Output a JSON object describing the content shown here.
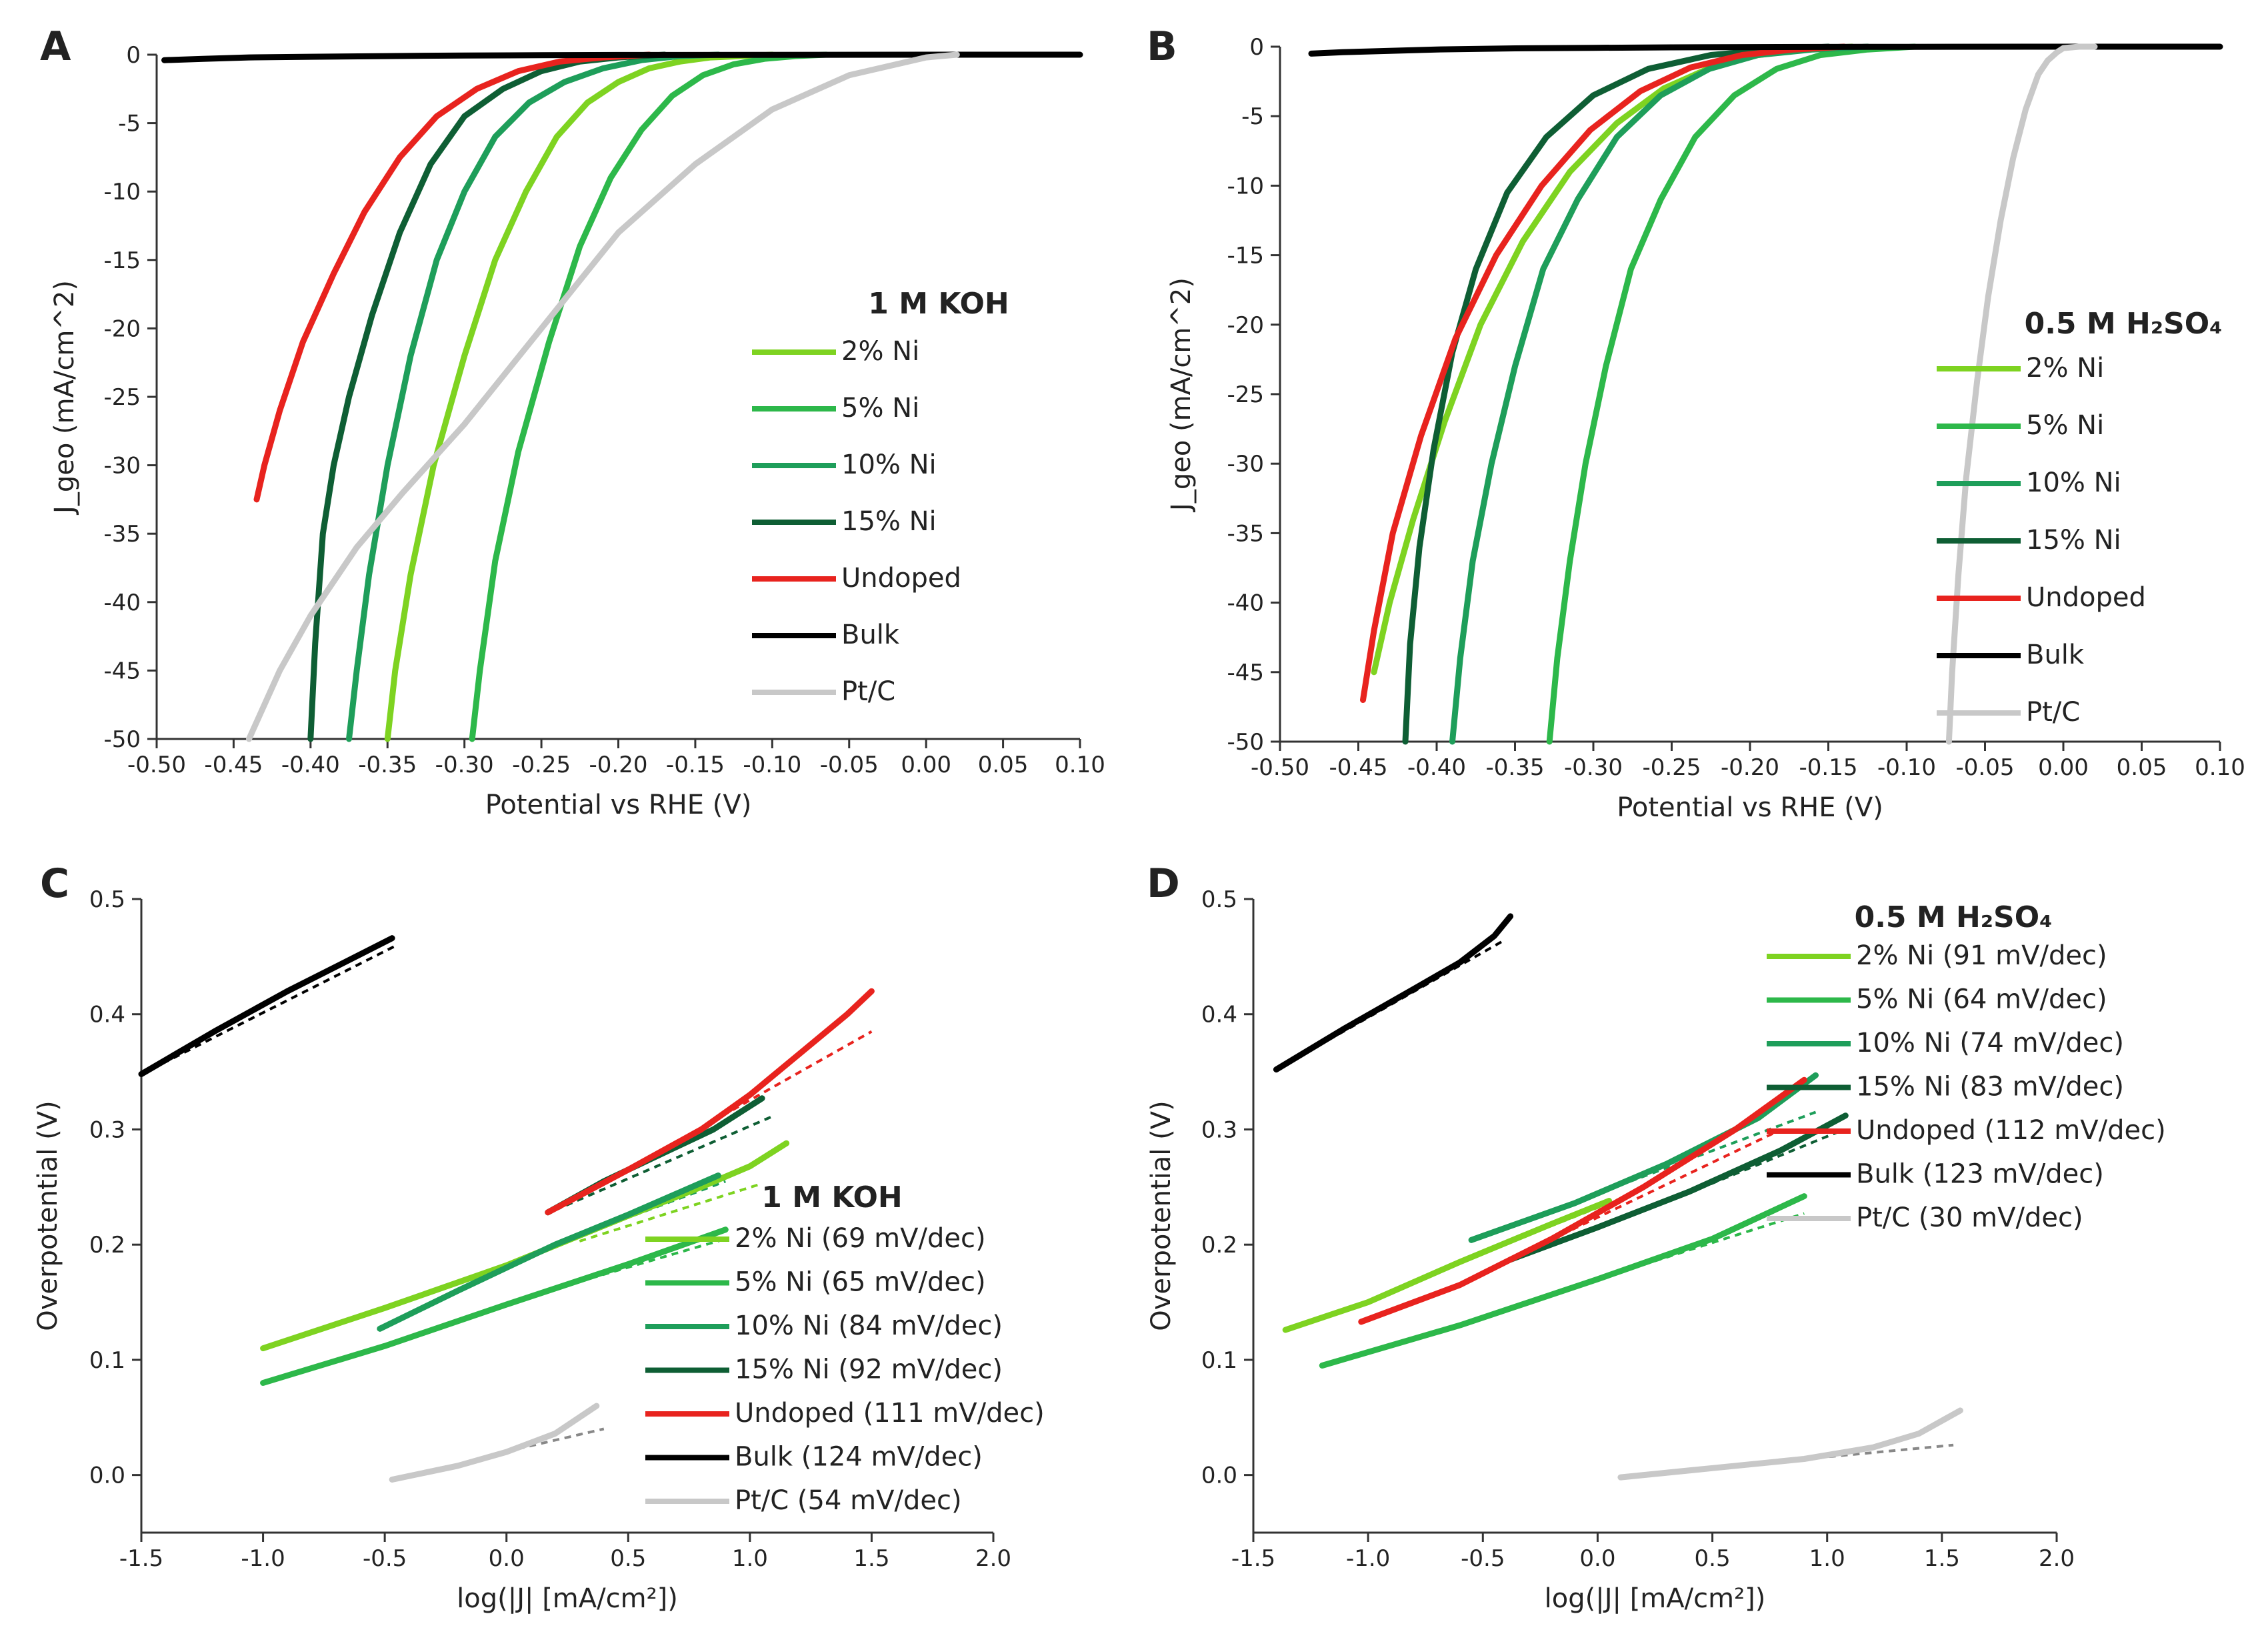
{
  "chart_data": [
    {
      "panel": "A",
      "type": "line",
      "xlabel": "Potential vs RHE (V)",
      "ylabel": "J_geo (mA/cm^2)",
      "xlim": [
        -0.5,
        0.1
      ],
      "ylim": [
        -50,
        0
      ],
      "xticks": [
        "-0.50",
        "-0.45",
        "-0.40",
        "-0.35",
        "-0.30",
        "-0.25",
        "-0.20",
        "-0.15",
        "-0.10",
        "-0.05",
        "0.00",
        "0.05",
        "0.10"
      ],
      "yticks": [
        "0",
        "-5",
        "-10",
        "-15",
        "-20",
        "-25",
        "-30",
        "-35",
        "-40",
        "-45",
        "-50"
      ],
      "legend": {
        "title": "1 M KOH",
        "placement": "right"
      },
      "series": [
        {
          "name": "2% Ni",
          "color": "#7ED321",
          "x": [
            -0.35,
            -0.345,
            -0.335,
            -0.32,
            -0.3,
            -0.28,
            -0.26,
            -0.24,
            -0.22,
            -0.2,
            -0.18,
            -0.16,
            -0.14,
            -0.12,
            -0.1
          ],
          "y": [
            -50,
            -45,
            -38,
            -30,
            -22,
            -15,
            -10,
            -6,
            -3.5,
            -2,
            -1,
            -0.5,
            -0.2,
            -0.1,
            0
          ]
        },
        {
          "name": "5% Ni",
          "color": "#2DB84A",
          "x": [
            -0.295,
            -0.29,
            -0.28,
            -0.265,
            -0.245,
            -0.225,
            -0.205,
            -0.185,
            -0.165,
            -0.145,
            -0.125,
            -0.105,
            -0.085,
            -0.065
          ],
          "y": [
            -50,
            -45,
            -37,
            -29,
            -21,
            -14,
            -9,
            -5.5,
            -3,
            -1.5,
            -0.7,
            -0.3,
            -0.1,
            0
          ]
        },
        {
          "name": "10% Ni",
          "color": "#1E9E5A",
          "x": [
            -0.375,
            -0.37,
            -0.362,
            -0.35,
            -0.335,
            -0.318,
            -0.3,
            -0.28,
            -0.258,
            -0.235,
            -0.21,
            -0.185,
            -0.16,
            -0.135
          ],
          "y": [
            -50,
            -45,
            -38,
            -30,
            -22,
            -15,
            -10,
            -6,
            -3.5,
            -2,
            -1,
            -0.4,
            -0.1,
            0
          ]
        },
        {
          "name": "15% Ni",
          "color": "#0E5E34",
          "x": [
            -0.4,
            -0.397,
            -0.392,
            -0.385,
            -0.375,
            -0.36,
            -0.342,
            -0.322,
            -0.3,
            -0.275,
            -0.25,
            -0.225,
            -0.2,
            -0.17
          ],
          "y": [
            -50,
            -43,
            -35,
            -30,
            -25,
            -19,
            -13,
            -8,
            -4.5,
            -2.5,
            -1.2,
            -0.5,
            -0.2,
            0
          ]
        },
        {
          "name": "Undoped",
          "color": "#E8231E",
          "x": [
            -0.435,
            -0.43,
            -0.42,
            -0.405,
            -0.385,
            -0.365,
            -0.342,
            -0.318,
            -0.292,
            -0.265,
            -0.238,
            -0.21,
            -0.18
          ],
          "y": [
            -32.5,
            -30,
            -26,
            -21,
            -16,
            -11.5,
            -7.5,
            -4.5,
            -2.5,
            -1.2,
            -0.5,
            -0.2,
            0
          ]
        },
        {
          "name": "Bulk",
          "color": "#000000",
          "x": [
            -0.495,
            -0.47,
            -0.44,
            -0.4,
            -0.35,
            -0.3,
            -0.25,
            -0.2,
            -0.1,
            0.0,
            0.1
          ],
          "y": [
            -0.4,
            -0.3,
            -0.2,
            -0.15,
            -0.1,
            -0.06,
            -0.04,
            -0.02,
            -0.01,
            0,
            0
          ]
        },
        {
          "name": "Pt/C",
          "color": "#C8C8C8",
          "x": [
            -0.44,
            -0.42,
            -0.4,
            -0.37,
            -0.34,
            -0.3,
            -0.25,
            -0.2,
            -0.15,
            -0.1,
            -0.05,
            0.0,
            0.02
          ],
          "y": [
            -50,
            -45,
            -41,
            -36,
            -32,
            -27,
            -20,
            -13,
            -8,
            -4,
            -1.5,
            -0.2,
            0
          ]
        }
      ]
    },
    {
      "panel": "B",
      "type": "line",
      "xlabel": "Potential vs RHE (V)",
      "ylabel": "J_geo (mA/cm^2)",
      "xlim": [
        -0.5,
        0.1
      ],
      "ylim": [
        -50,
        0
      ],
      "xticks": [
        "-0.50",
        "-0.45",
        "-0.40",
        "-0.35",
        "-0.30",
        "-0.25",
        "-0.20",
        "-0.15",
        "-0.10",
        "-0.05",
        "0.00",
        "0.05",
        "0.10"
      ],
      "yticks": [
        "0",
        "-5",
        "-10",
        "-15",
        "-20",
        "-25",
        "-30",
        "-35",
        "-40",
        "-45",
        "-50"
      ],
      "legend": {
        "title": "0.5 M H₂SO₄",
        "placement": "right"
      },
      "series": [
        {
          "name": "2% Ni",
          "color": "#7ED321",
          "x": [
            -0.44,
            -0.43,
            -0.415,
            -0.395,
            -0.372,
            -0.345,
            -0.315,
            -0.285,
            -0.255,
            -0.225,
            -0.195,
            -0.165,
            -0.135
          ],
          "y": [
            -45,
            -40,
            -34,
            -27,
            -20,
            -14,
            -9,
            -5.5,
            -3,
            -1.5,
            -0.6,
            -0.2,
            0
          ]
        },
        {
          "name": "5% Ni",
          "color": "#2DB84A",
          "x": [
            -0.328,
            -0.323,
            -0.315,
            -0.305,
            -0.292,
            -0.276,
            -0.257,
            -0.235,
            -0.21,
            -0.183,
            -0.155,
            -0.125,
            -0.095
          ],
          "y": [
            -50,
            -44,
            -37,
            -30,
            -23,
            -16,
            -11,
            -6.5,
            -3.5,
            -1.6,
            -0.6,
            -0.2,
            0
          ]
        },
        {
          "name": "10% Ni",
          "color": "#1E9E5A",
          "x": [
            -0.39,
            -0.385,
            -0.377,
            -0.365,
            -0.35,
            -0.332,
            -0.31,
            -0.285,
            -0.257,
            -0.226,
            -0.195,
            -0.16,
            -0.125
          ],
          "y": [
            -50,
            -44,
            -37,
            -30,
            -23,
            -16,
            -11,
            -6.5,
            -3.5,
            -1.6,
            -0.6,
            -0.2,
            0
          ]
        },
        {
          "name": "15% Ni",
          "color": "#0E5E34",
          "x": [
            -0.42,
            -0.417,
            -0.411,
            -0.402,
            -0.39,
            -0.375,
            -0.355,
            -0.33,
            -0.3,
            -0.265,
            -0.225,
            -0.185,
            -0.15
          ],
          "y": [
            -50,
            -43,
            -36,
            -29,
            -22,
            -16,
            -10.5,
            -6.5,
            -3.5,
            -1.6,
            -0.6,
            -0.2,
            0
          ]
        },
        {
          "name": "Undoped",
          "color": "#E8231E",
          "x": [
            -0.447,
            -0.44,
            -0.428,
            -0.41,
            -0.388,
            -0.362,
            -0.333,
            -0.302,
            -0.27,
            -0.238,
            -0.205,
            -0.172,
            -0.14
          ],
          "y": [
            -47,
            -42,
            -35,
            -28,
            -21,
            -15,
            -10,
            -6,
            -3.2,
            -1.5,
            -0.6,
            -0.2,
            0
          ]
        },
        {
          "name": "Bulk",
          "color": "#000000",
          "x": [
            -0.48,
            -0.46,
            -0.43,
            -0.4,
            -0.35,
            -0.3,
            -0.25,
            -0.2,
            -0.1,
            0.0,
            0.1
          ],
          "y": [
            -0.5,
            -0.4,
            -0.3,
            -0.2,
            -0.12,
            -0.08,
            -0.05,
            -0.03,
            -0.01,
            0,
            0
          ]
        },
        {
          "name": "Pt/C",
          "color": "#C8C8C8",
          "x": [
            -0.073,
            -0.071,
            -0.067,
            -0.062,
            -0.055,
            -0.048,
            -0.04,
            -0.032,
            -0.024,
            -0.016,
            -0.01,
            -0.004,
            0.0,
            0.01,
            0.02
          ],
          "y": [
            -50,
            -45,
            -38,
            -31,
            -24,
            -18,
            -12.5,
            -8,
            -4.5,
            -2,
            -1,
            -0.4,
            -0.1,
            0,
            0
          ]
        }
      ]
    },
    {
      "panel": "C",
      "type": "line",
      "xlabel": "log(|J| [mA/cm²])",
      "ylabel": "Overpotential (V)",
      "xlim": [
        -1.5,
        2.0
      ],
      "ylim": [
        -0.05,
        0.5
      ],
      "xticks": [
        "-1.5",
        "-1.0",
        "-0.5",
        "0.0",
        "0.5",
        "1.0",
        "1.5",
        "2.0"
      ],
      "yticks": [
        "0.0",
        "0.1",
        "0.2",
        "0.3",
        "0.4",
        "0.5"
      ],
      "legend": {
        "title": "1 M KOH",
        "placement": "center-right"
      },
      "series": [
        {
          "name": "2% Ni (69 mV/dec)",
          "color": "#7ED321",
          "x": [
            -1.0,
            -0.5,
            0.0,
            0.5,
            0.8,
            1.0,
            1.15
          ],
          "y": [
            0.11,
            0.145,
            0.182,
            0.225,
            0.25,
            0.268,
            0.288
          ],
          "fit": {
            "x": [
              0.3,
              1.05
            ],
            "y": [
              0.203,
              0.253
            ]
          }
        },
        {
          "name": "5% Ni (65 mV/dec)",
          "color": "#2DB84A",
          "x": [
            -1.0,
            -0.5,
            0.0,
            0.5,
            0.9
          ],
          "y": [
            0.08,
            0.112,
            0.148,
            0.183,
            0.213
          ],
          "fit": {
            "x": [
              0.3,
              0.9
            ],
            "y": [
              0.168,
              0.205
            ]
          }
        },
        {
          "name": "10% Ni (84 mV/dec)",
          "color": "#1E9E5A",
          "x": [
            -0.52,
            -0.2,
            0.2,
            0.5,
            0.87
          ],
          "y": [
            0.127,
            0.16,
            0.2,
            0.226,
            0.26
          ],
          "fit": {
            "x": [
              0.2,
              0.9
            ],
            "y": [
              0.2,
              0.255
            ]
          }
        },
        {
          "name": "15% Ni (92 mV/dec)",
          "color": "#0E5E34",
          "x": [
            0.17,
            0.4,
            0.6,
            0.85,
            1.05
          ],
          "y": [
            0.228,
            0.255,
            0.275,
            0.3,
            0.327
          ],
          "fit": {
            "x": [
              0.2,
              1.1
            ],
            "y": [
              0.23,
              0.312
            ]
          }
        },
        {
          "name": "Undoped (111 mV/dec)",
          "color": "#E8231E",
          "x": [
            0.17,
            0.5,
            0.8,
            1.0,
            1.2,
            1.4,
            1.5
          ],
          "y": [
            0.228,
            0.265,
            0.3,
            0.33,
            0.365,
            0.4,
            0.42
          ],
          "fit": {
            "x": [
              0.2,
              1.5
            ],
            "y": [
              0.23,
              0.385
            ]
          }
        },
        {
          "name": "Bulk (124 mV/dec)",
          "color": "#000000",
          "x": [
            -1.5,
            -1.2,
            -0.9,
            -0.6,
            -0.47
          ],
          "y": [
            0.348,
            0.385,
            0.42,
            0.452,
            0.466
          ],
          "fit": {
            "x": [
              -1.5,
              -0.45
            ],
            "y": [
              0.348,
              0.46
            ]
          }
        },
        {
          "name": "Pt/C (54 mV/dec)",
          "color": "#C8C8C8",
          "x": [
            -0.47,
            -0.2,
            0.0,
            0.2,
            0.37
          ],
          "y": [
            -0.004,
            0.008,
            0.02,
            0.036,
            0.06
          ],
          "fit": {
            "x": [
              -0.05,
              0.4
            ],
            "y": [
              0.018,
              0.04
            ]
          }
        }
      ]
    },
    {
      "panel": "D",
      "type": "line",
      "xlabel": "log(|J| [mA/cm²])",
      "ylabel": "Overpotential (V)",
      "xlim": [
        -1.5,
        2.0
      ],
      "ylim": [
        -0.05,
        0.5
      ],
      "xticks": [
        "-1.5",
        "-1.0",
        "-0.5",
        "0.0",
        "0.5",
        "1.0",
        "1.5",
        "2.0"
      ],
      "yticks": [
        "0.0",
        "0.1",
        "0.2",
        "0.3",
        "0.4",
        "0.5"
      ],
      "legend": {
        "title": "0.5 M H₂SO₄",
        "placement": "top-right"
      },
      "series": [
        {
          "name": "2% Ni (91 mV/dec)",
          "color": "#7ED321",
          "x": [
            -1.36,
            -1.0,
            -0.6,
            -0.2,
            0.05
          ],
          "y": [
            0.126,
            0.15,
            0.185,
            0.218,
            0.238
          ],
          "fit": {
            "x": [
              -0.6,
              0.1
            ],
            "y": [
              0.185,
              0.24
            ]
          }
        },
        {
          "name": "5% Ni (64 mV/dec)",
          "color": "#2DB84A",
          "x": [
            -1.2,
            -0.6,
            0.0,
            0.5,
            0.9
          ],
          "y": [
            0.095,
            0.13,
            0.17,
            0.205,
            0.242
          ],
          "fit": {
            "x": [
              0.0,
              0.9
            ],
            "y": [
              0.17,
              0.227
            ]
          }
        },
        {
          "name": "10% Ni (74 mV/dec)",
          "color": "#1E9E5A",
          "x": [
            -0.55,
            -0.1,
            0.3,
            0.7,
            0.95
          ],
          "y": [
            0.204,
            0.236,
            0.27,
            0.31,
            0.347
          ],
          "fit": {
            "x": [
              -0.3,
              0.95
            ],
            "y": [
              0.222,
              0.315
            ]
          }
        },
        {
          "name": "15% Ni (83 mV/dec)",
          "color": "#0E5E34",
          "x": [
            -0.38,
            0.0,
            0.4,
            0.8,
            1.08
          ],
          "y": [
            0.187,
            0.215,
            0.246,
            0.282,
            0.312
          ],
          "fit": {
            "x": [
              0.3,
              1.05
            ],
            "y": [
              0.237,
              0.298
            ]
          }
        },
        {
          "name": "Undoped (112 mV/dec)",
          "color": "#E8231E",
          "x": [
            -1.03,
            -0.6,
            -0.2,
            0.2,
            0.6,
            0.9
          ],
          "y": [
            0.133,
            0.165,
            0.205,
            0.25,
            0.3,
            0.343
          ],
          "fit": {
            "x": [
              -0.3,
              0.8
            ],
            "y": [
              0.195,
              0.3
            ]
          }
        },
        {
          "name": "Bulk (123 mV/dec)",
          "color": "#000000",
          "x": [
            -1.4,
            -1.1,
            -0.8,
            -0.6,
            -0.45,
            -0.38
          ],
          "y": [
            0.352,
            0.388,
            0.422,
            0.445,
            0.468,
            0.485
          ],
          "fit": {
            "x": [
              -1.4,
              -0.4
            ],
            "y": [
              0.352,
              0.465
            ]
          }
        },
        {
          "name": "Pt/C (30 mV/dec)",
          "color": "#C8C8C8",
          "x": [
            0.1,
            0.5,
            0.9,
            1.2,
            1.4,
            1.58
          ],
          "y": [
            -0.002,
            0.006,
            0.014,
            0.024,
            0.036,
            0.056
          ],
          "fit": {
            "x": [
              0.8,
              1.55
            ],
            "y": [
              0.012,
              0.026
            ]
          }
        }
      ]
    }
  ]
}
